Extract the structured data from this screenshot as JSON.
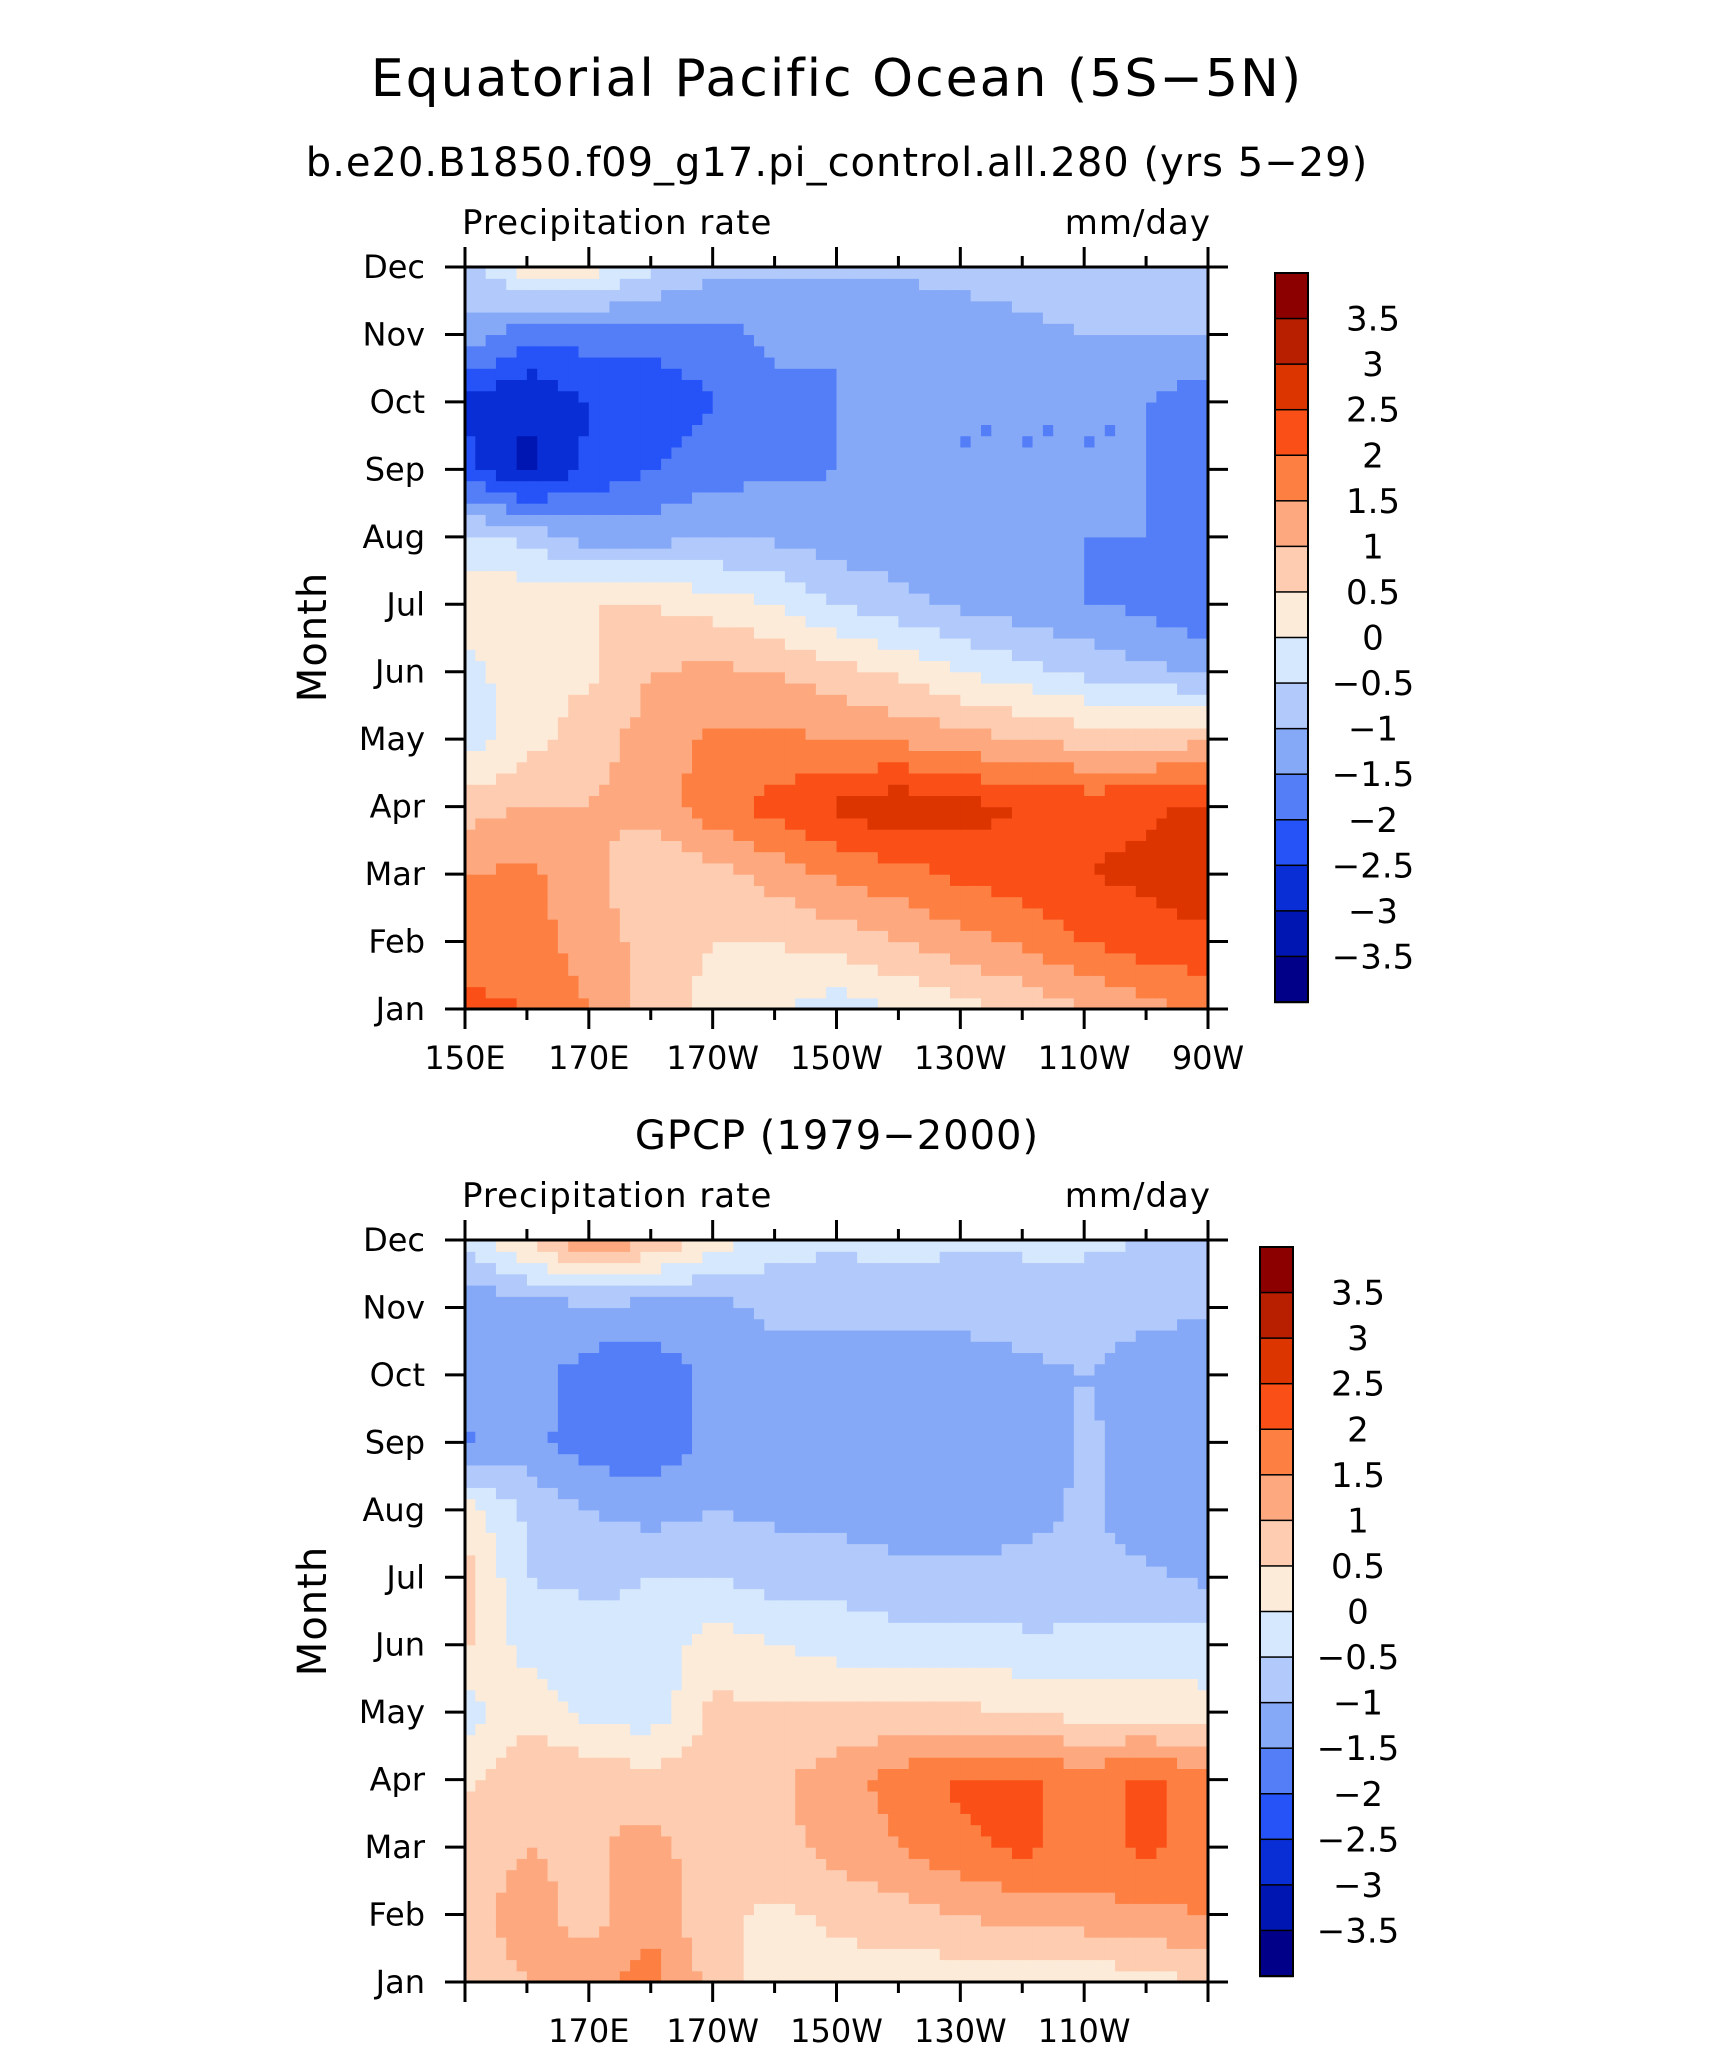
{
  "title": "Equatorial Pacific Ocean (5S−5N)",
  "colors": {
    "background": "#ffffff",
    "frame": "#000000",
    "blue_strong": "#0000a8",
    "red_strong": "#8c0000"
  },
  "chart_data": [
    {
      "type": "heatmap",
      "subtitle": "b.e20.B1850.f09_g17.pi_control.all.280 (yrs 5−29)",
      "left_label": "Precipitation rate",
      "right_label": "mm/day",
      "ylabel": "Month",
      "x_ticks": [
        "150E",
        "170E",
        "170W",
        "150W",
        "130W",
        "110W",
        "90W"
      ],
      "y_ticks": [
        "Jan",
        "Feb",
        "Mar",
        "Apr",
        "May",
        "Jun",
        "Jul",
        "Aug",
        "Sep",
        "Oct",
        "Nov",
        "Dec"
      ],
      "longitudes": [
        "150E",
        "160E",
        "170E",
        "180",
        "170W",
        "160W",
        "150W",
        "140W",
        "130W",
        "120W",
        "110W",
        "100W",
        "90W"
      ],
      "months": [
        "Jan",
        "Feb",
        "Mar",
        "Apr",
        "May",
        "Jun",
        "Jul",
        "Aug",
        "Sep",
        "Oct",
        "Nov",
        "Dec"
      ],
      "values": [
        [
          2.2,
          2.0,
          1.5,
          0.8,
          0.3,
          0.1,
          -0.3,
          0.0,
          0.3,
          0.6,
          1.0,
          1.3,
          1.6
        ],
        [
          1.5,
          1.7,
          1.3,
          0.8,
          0.5,
          0.5,
          0.7,
          1.0,
          1.3,
          1.6,
          2.0,
          2.3,
          2.4
        ],
        [
          1.5,
          1.6,
          1.2,
          0.5,
          0.8,
          1.2,
          1.6,
          1.8,
          2.1,
          2.3,
          2.5,
          2.6,
          2.8
        ],
        [
          0.8,
          1.0,
          1.0,
          1.2,
          1.8,
          2.2,
          2.6,
          2.9,
          2.7,
          2.5,
          2.4,
          2.4,
          2.6
        ],
        [
          -0.3,
          0.3,
          0.8,
          1.2,
          1.6,
          1.6,
          1.5,
          1.4,
          1.2,
          1.0,
          0.8,
          0.8,
          0.9
        ],
        [
          -0.2,
          0.3,
          0.4,
          1.0,
          1.1,
          1.0,
          0.7,
          0.4,
          0.0,
          -0.3,
          -0.6,
          -0.9,
          -1.0
        ],
        [
          0.4,
          0.4,
          0.5,
          0.5,
          0.3,
          0.0,
          -0.5,
          -0.8,
          -1.1,
          -1.3,
          -1.5,
          -1.6,
          -2.0
        ],
        [
          -0.4,
          -0.6,
          -1.2,
          -1.2,
          -1.0,
          -1.1,
          -1.3,
          -1.4,
          -1.5,
          -1.5,
          -1.5,
          -1.5,
          -1.9
        ],
        [
          -2.3,
          -3.1,
          -2.4,
          -2.0,
          -1.7,
          -1.6,
          -1.5,
          -1.5,
          -1.5,
          -1.5,
          -1.5,
          -1.5,
          -1.7
        ],
        [
          -2.6,
          -3.0,
          -2.5,
          -2.4,
          -2.0,
          -1.6,
          -1.5,
          -1.5,
          -1.5,
          -1.5,
          -1.5,
          -1.5,
          -1.8
        ],
        [
          -1.1,
          -1.9,
          -1.8,
          -1.8,
          -1.7,
          -1.4,
          -1.5,
          -1.5,
          -1.3,
          -1.1,
          -1.0,
          -1.0,
          -1.0
        ],
        [
          -0.8,
          0.3,
          0.3,
          -0.4,
          -0.8,
          -0.9,
          -0.9,
          -0.9,
          -0.8,
          -0.8,
          -0.8,
          -0.8,
          -0.8
        ]
      ],
      "levels": [
        -3.5,
        -3,
        -2.5,
        -2,
        -1.5,
        -1,
        -0.5,
        0,
        0.5,
        1,
        1.5,
        2,
        2.5,
        3,
        3.5
      ],
      "colorbar_labels": [
        "3.5",
        "3",
        "2.5",
        "2",
        "1.5",
        "1",
        "0.5",
        "0",
        "−0.5",
        "−1",
        "−1.5",
        "−2",
        "−2.5",
        "−3",
        "−3.5"
      ],
      "colorbar_colors": [
        "#8c0000",
        "#b81e00",
        "#dd3500",
        "#fa5018",
        "#fd7f42",
        "#fda87e",
        "#fdccb1",
        "#fdebd9",
        "#d6e8fd",
        "#b2cafb",
        "#86a9f7",
        "#537ef8",
        "#2553f8",
        "#0a2ed6",
        "#0016b3",
        "#000088"
      ]
    },
    {
      "type": "heatmap",
      "subtitle": "GPCP (1979−2000)",
      "left_label": "Precipitation rate",
      "right_label": "mm/day",
      "ylabel": "Month",
      "x_ticks": [
        "170E",
        "170W",
        "150W",
        "130W",
        "110W"
      ],
      "y_ticks": [
        "Jan",
        "Feb",
        "Mar",
        "Apr",
        "May",
        "Jun",
        "Jul",
        "Aug",
        "Sep",
        "Oct",
        "Nov",
        "Dec"
      ],
      "longitudes": [
        "150E",
        "160E",
        "170E",
        "180",
        "170W",
        "160W",
        "150W",
        "140W",
        "130W",
        "120W",
        "110W",
        "100W",
        "90W"
      ],
      "months": [
        "Jan",
        "Feb",
        "Mar",
        "Apr",
        "May",
        "Jun",
        "Jul",
        "Aug",
        "Sep",
        "Oct",
        "Nov",
        "Dec"
      ],
      "values": [
        [
          0.8,
          1.0,
          1.3,
          1.7,
          0.8,
          0.2,
          0.3,
          0.2,
          0.2,
          0.0,
          0.1,
          0.3,
          0.5
        ],
        [
          0.8,
          1.2,
          0.8,
          1.4,
          0.6,
          0.4,
          0.6,
          0.8,
          1.0,
          1.2,
          1.3,
          1.4,
          1.5
        ],
        [
          0.8,
          1.0,
          0.9,
          1.2,
          0.7,
          0.8,
          1.2,
          1.5,
          1.9,
          2.1,
          1.8,
          2.1,
          1.8
        ],
        [
          0.4,
          0.9,
          0.9,
          0.7,
          0.8,
          0.9,
          1.3,
          1.7,
          2.1,
          2.1,
          1.8,
          2.1,
          1.7
        ],
        [
          -0.3,
          0.4,
          -0.2,
          -0.3,
          0.6,
          0.6,
          0.6,
          0.6,
          0.6,
          0.5,
          0.3,
          0.3,
          0.2
        ],
        [
          0.6,
          -0.2,
          -0.3,
          -0.4,
          0.3,
          0.0,
          -0.2,
          -0.3,
          -0.3,
          -0.4,
          -0.4,
          -0.3,
          -0.3
        ],
        [
          0.7,
          -0.5,
          -0.6,
          -0.5,
          -0.5,
          -0.7,
          -0.7,
          -0.8,
          -0.8,
          -0.8,
          -0.8,
          -0.9,
          -1.1
        ],
        [
          0.3,
          -0.6,
          -1.0,
          -1.2,
          -1.0,
          -1.1,
          -1.2,
          -1.3,
          -1.4,
          -1.2,
          -0.9,
          -1.3,
          -1.3
        ],
        [
          -1.6,
          -1.3,
          -1.8,
          -1.8,
          -1.4,
          -1.2,
          -1.5,
          -1.5,
          -1.5,
          -1.5,
          -0.9,
          -1.2,
          -1.4
        ],
        [
          -1.2,
          -1.3,
          -1.7,
          -1.8,
          -1.4,
          -1.2,
          -1.2,
          -1.2,
          -1.2,
          -1.1,
          -1.0,
          -1.2,
          -1.4
        ],
        [
          -1.5,
          -1.2,
          -1.2,
          -1.2,
          -1.2,
          -0.9,
          -0.9,
          -0.9,
          -0.9,
          -0.8,
          -0.8,
          -0.9,
          -0.9
        ],
        [
          -0.3,
          0.5,
          1.5,
          1.0,
          0.3,
          -0.3,
          -0.4,
          -0.3,
          -0.4,
          -0.4,
          -0.4,
          -0.5,
          -0.5
        ]
      ],
      "levels": [
        -3.5,
        -3,
        -2.5,
        -2,
        -1.5,
        -1,
        -0.5,
        0,
        0.5,
        1,
        1.5,
        2,
        2.5,
        3,
        3.5
      ],
      "colorbar_labels": [
        "3.5",
        "3",
        "2.5",
        "2",
        "1.5",
        "1",
        "0.5",
        "0",
        "−0.5",
        "−1",
        "−1.5",
        "−2",
        "−2.5",
        "−3",
        "−3.5"
      ],
      "colorbar_colors": [
        "#8c0000",
        "#b81e00",
        "#dd3500",
        "#fa5018",
        "#fd7f42",
        "#fda87e",
        "#fdccb1",
        "#fdebd9",
        "#d6e8fd",
        "#b2cafb",
        "#86a9f7",
        "#537ef8",
        "#2553f8",
        "#0a2ed6",
        "#0016b3",
        "#000088"
      ]
    }
  ]
}
